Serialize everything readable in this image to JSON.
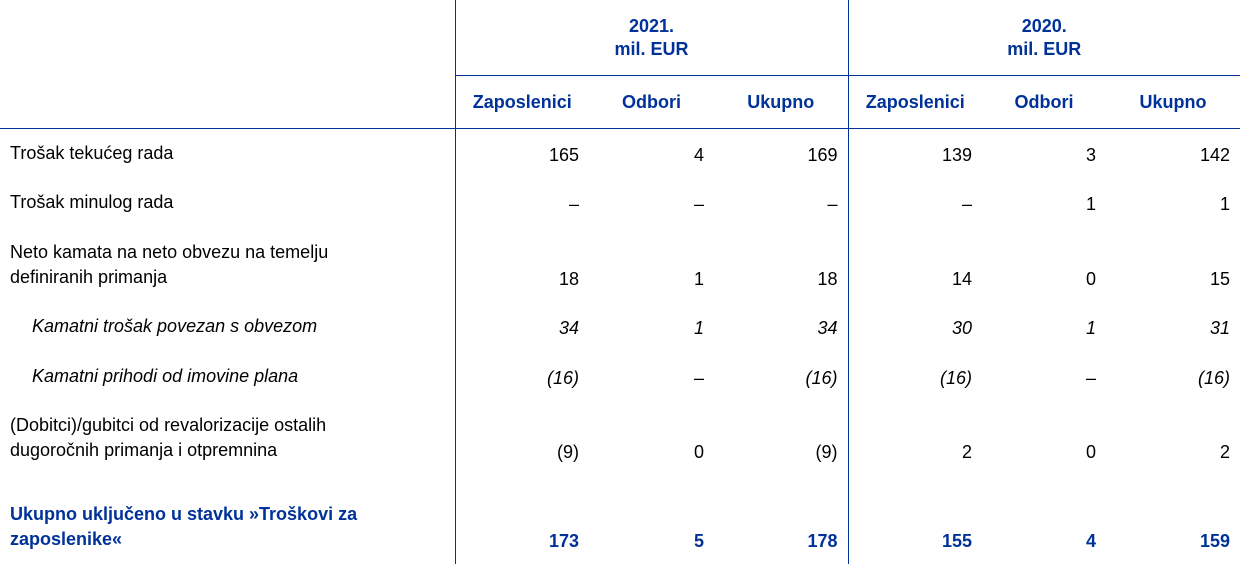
{
  "header": {
    "groups": [
      {
        "year": "2021.",
        "unit": "mil. EUR"
      },
      {
        "year": "2020.",
        "unit": "mil. EUR"
      }
    ],
    "columns": [
      "Zaposlenici",
      "Odbori",
      "Ukupno",
      "Zaposlenici",
      "Odbori",
      "Ukupno"
    ]
  },
  "rows": [
    {
      "label": "Trošak tekućeg rada",
      "values": [
        "165",
        "4",
        "169",
        "139",
        "3",
        "142"
      ]
    },
    {
      "label": "Trošak minulog rada",
      "values": [
        "–",
        "–",
        "–",
        "–",
        "1",
        "1"
      ]
    },
    {
      "label_lines": [
        "Neto kamata na neto obvezu na temelju",
        "definiranih primanja"
      ],
      "values": [
        "18",
        "1",
        "18",
        "14",
        "0",
        "15"
      ]
    },
    {
      "label": "Kamatni trošak povezan s obvezom",
      "values": [
        "34",
        "1",
        "34",
        "30",
        "1",
        "31"
      ]
    },
    {
      "label": "Kamatni prihodi od imovine plana",
      "values": [
        "(16)",
        "–",
        "(16)",
        "(16)",
        "–",
        "(16)"
      ]
    },
    {
      "label_lines": [
        "(Dobitci)/gubitci od revalorizacije ostalih",
        "dugoročnih primanja i otpremnina"
      ],
      "values": [
        "(9)",
        "0",
        "(9)",
        "2",
        "0",
        "2"
      ]
    },
    {
      "label_lines": [
        "Ukupno uključeno u stavku »Troškovi za",
        "zaposlenike«"
      ],
      "values": [
        "173",
        "5",
        "178",
        "155",
        "4",
        "159"
      ]
    }
  ]
}
